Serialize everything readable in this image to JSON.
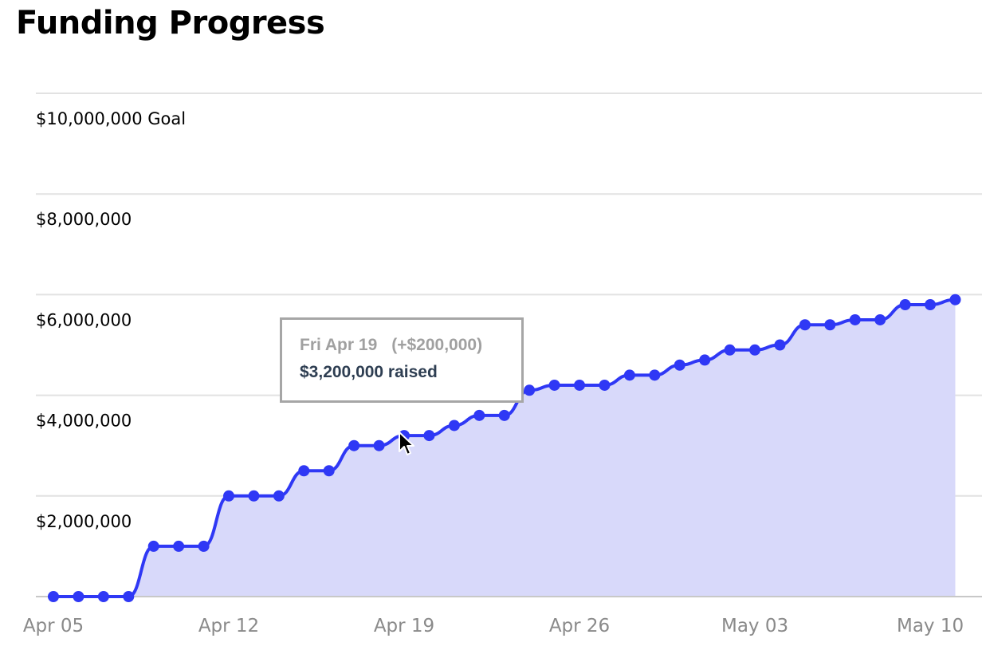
{
  "title": "Funding Progress",
  "tooltip": {
    "date": "Fri Apr 19",
    "change": "(+$200,000)",
    "total": "$3,200,000 raised"
  },
  "chart_data": {
    "type": "area",
    "title": "Funding Progress",
    "xlabel": "",
    "ylabel": "",
    "x_start": "2024-04-05",
    "x_end": "2024-05-11",
    "x_ticks": [
      {
        "label": "Apr 05",
        "date": "2024-04-05"
      },
      {
        "label": "Apr 12",
        "date": "2024-04-12"
      },
      {
        "label": "Apr 19",
        "date": "2024-04-19"
      },
      {
        "label": "Apr 26",
        "date": "2024-04-26"
      },
      {
        "label": "May 03",
        "date": "2024-05-03"
      },
      {
        "label": "May 10",
        "date": "2024-05-10"
      }
    ],
    "y_ticks": [
      {
        "label": "$2,000,000",
        "value": 2000000
      },
      {
        "label": "$4,000,000",
        "value": 4000000
      },
      {
        "label": "$6,000,000",
        "value": 6000000
      },
      {
        "label": "$8,000,000",
        "value": 8000000
      },
      {
        "label": "$10,000,000 Goal",
        "value": 10000000
      }
    ],
    "ylim": [
      0,
      10000000
    ],
    "grid": true,
    "series": [
      {
        "x": [
          "2024-04-05",
          "2024-04-06",
          "2024-04-07",
          "2024-04-08",
          "2024-04-09",
          "2024-04-10",
          "2024-04-11",
          "2024-04-12",
          "2024-04-13",
          "2024-04-14",
          "2024-04-15",
          "2024-04-16",
          "2024-04-17",
          "2024-04-18",
          "2024-04-19",
          "2024-04-20",
          "2024-04-21",
          "2024-04-22",
          "2024-04-23",
          "2024-04-24",
          "2024-04-25",
          "2024-04-26",
          "2024-04-27",
          "2024-04-28",
          "2024-04-29",
          "2024-04-30",
          "2024-05-01",
          "2024-05-02",
          "2024-05-03",
          "2024-05-04",
          "2024-05-05",
          "2024-05-06",
          "2024-05-07",
          "2024-05-08",
          "2024-05-09",
          "2024-05-10",
          "2024-05-11"
        ],
        "values": [
          0,
          0,
          0,
          0,
          1000000,
          1000000,
          1000000,
          2000000,
          2000000,
          2000000,
          2500000,
          2500000,
          3000000,
          3000000,
          3200000,
          3200000,
          3400000,
          3600000,
          3600000,
          4100000,
          4200000,
          4200000,
          4200000,
          4400000,
          4400000,
          4600000,
          4700000,
          4900000,
          4900000,
          5000000,
          5400000,
          5400000,
          5500000,
          5500000,
          5800000,
          5800000,
          5900000
        ],
        "color": "#2f38f5",
        "fill_color": "#d8d9fa"
      }
    ]
  }
}
